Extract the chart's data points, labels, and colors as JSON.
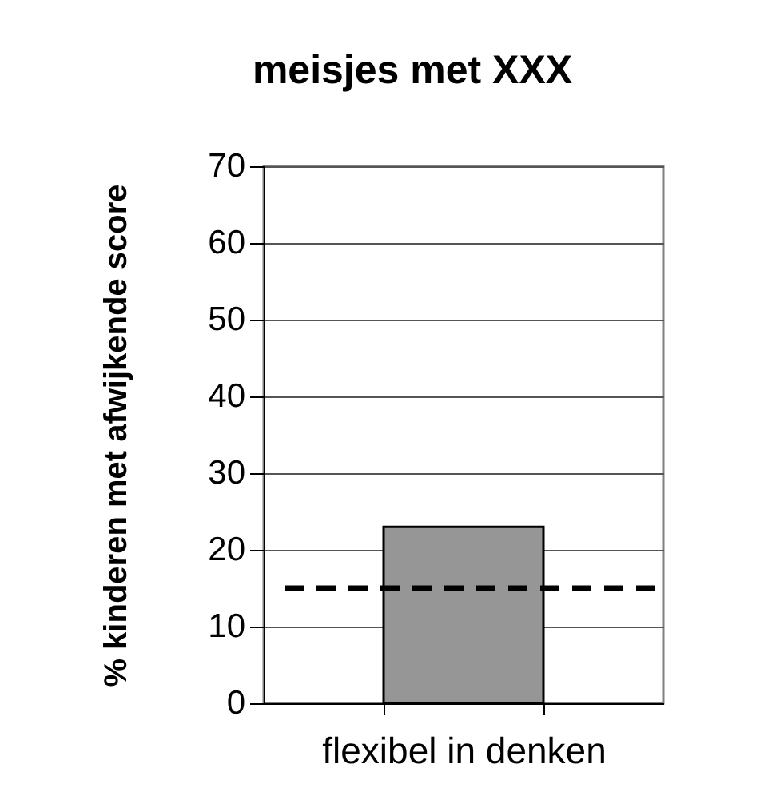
{
  "chart_data": {
    "type": "bar",
    "title": "meisjes met XXX",
    "ylabel": "% kinderen met afwijkende score",
    "categories": [
      "flexibel in denken"
    ],
    "values": [
      23
    ],
    "color": "#969696",
    "ylim": [
      0,
      70
    ],
    "yticks": [
      0,
      10,
      20,
      30,
      40,
      50,
      60,
      70
    ],
    "grid": "y",
    "ref_lines": [
      {
        "axis": "y",
        "value": 15,
        "color": "#000000",
        "line_style": "dashed"
      }
    ]
  }
}
